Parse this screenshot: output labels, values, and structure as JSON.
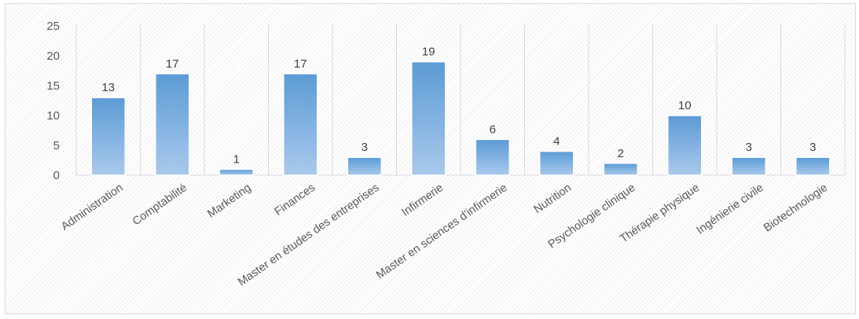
{
  "chart_data": {
    "type": "bar",
    "title": "",
    "xlabel": "",
    "ylabel": "",
    "categories": [
      "Administration",
      "Comptabilité",
      "Marketing",
      "Finances",
      "Master en études des entreprises",
      "Infirmerie",
      "Master en sciences d'infirmerie",
      "Nutrition",
      "Psychologie clinique",
      "Thérapie physique",
      "Ingénierie civile",
      "Biotechnologie"
    ],
    "values": [
      13,
      17,
      1,
      17,
      3,
      19,
      6,
      4,
      2,
      10,
      3,
      3
    ],
    "data_labels": [
      "13",
      "17",
      "1",
      "17",
      "3",
      "19",
      "6",
      "4",
      "2",
      "10",
      "3",
      "3"
    ],
    "ylim": [
      0,
      25
    ],
    "yticks": [
      0,
      5,
      10,
      15,
      20,
      25
    ],
    "ytick_labels": [
      "0",
      "5",
      "10",
      "15",
      "20",
      "25"
    ],
    "grid": "vertical",
    "legend": "none",
    "colors": {
      "bar_top": "#5b9bd5",
      "bar_bottom": "#a9c9ec",
      "bar_stroke": "#ffffff",
      "grid": "#d9d9d9",
      "text": "#595959"
    }
  }
}
